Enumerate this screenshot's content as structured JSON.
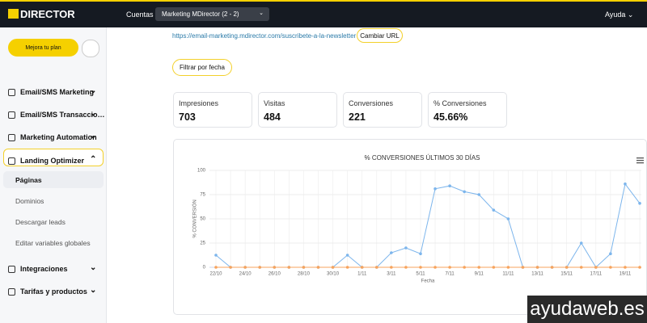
{
  "topbar": {
    "logo": "DIRECTOR",
    "accounts_label": "Cuentas",
    "account": "Marketing MDirector (2 - 2)",
    "help": "Ayuda"
  },
  "sidebar": {
    "upgrade": "Mejora tu plan",
    "items": [
      "Email/SMS Marketing",
      "Email/SMS Transaccio…",
      "Marketing Automation",
      "Landing Optimizer",
      "Integraciones",
      "Tarifas y productos"
    ],
    "subitems": [
      "Páginas",
      "Dominios",
      "Descargar leads",
      "Editar variables globales"
    ]
  },
  "main": {
    "url": "https://email-marketing.mdirector.com/suscribete-a-la-newsletter",
    "change_url": "Cambiar URL",
    "filter": "Filtrar por fecha",
    "stats": [
      {
        "label": "Impresiones",
        "value": 703
      },
      {
        "label": "Visitas",
        "value": 484
      },
      {
        "label": "Conversiones",
        "value": 221
      },
      {
        "label": "% Conversiones",
        "value": "45.66%"
      }
    ]
  },
  "watermark": "ayudaweb.es",
  "chart_data": {
    "type": "line",
    "title": "% CONVERSIONES ÚLTIMOS 30 DÍAS",
    "y_label": "% CONVERSIÓN",
    "x_label": "Fecha",
    "categories": [
      "22/10",
      null,
      "24/10",
      null,
      "26/10",
      null,
      "28/10",
      null,
      "30/10",
      null,
      "1/11",
      null,
      "3/11",
      null,
      "5/11",
      null,
      "7/11",
      null,
      "9/11",
      null,
      "11/11",
      null,
      "13/11",
      null,
      "15/11",
      null,
      "17/11",
      null,
      "19/11",
      null
    ],
    "series": [
      {
        "color": "#7cb5ec",
        "values": [
          12.5,
          0,
          0,
          0,
          0,
          0,
          0,
          0,
          0,
          12.5,
          0,
          0,
          15,
          20,
          14,
          81,
          84,
          78,
          75,
          59,
          50,
          0,
          0,
          0,
          0,
          25,
          0,
          14,
          86,
          66
        ]
      },
      {
        "color": "#f7a35c",
        "values": [
          0,
          0,
          0,
          0,
          0,
          0,
          0,
          0,
          0,
          0,
          0,
          0,
          0,
          0,
          0,
          0,
          0,
          0,
          0,
          0,
          0,
          0,
          0,
          0,
          0,
          0,
          0,
          0,
          0,
          0
        ]
      }
    ],
    "ylim": [
      0,
      100
    ],
    "yticks": [
      0,
      25,
      50,
      75,
      100
    ],
    "grid": true
  }
}
